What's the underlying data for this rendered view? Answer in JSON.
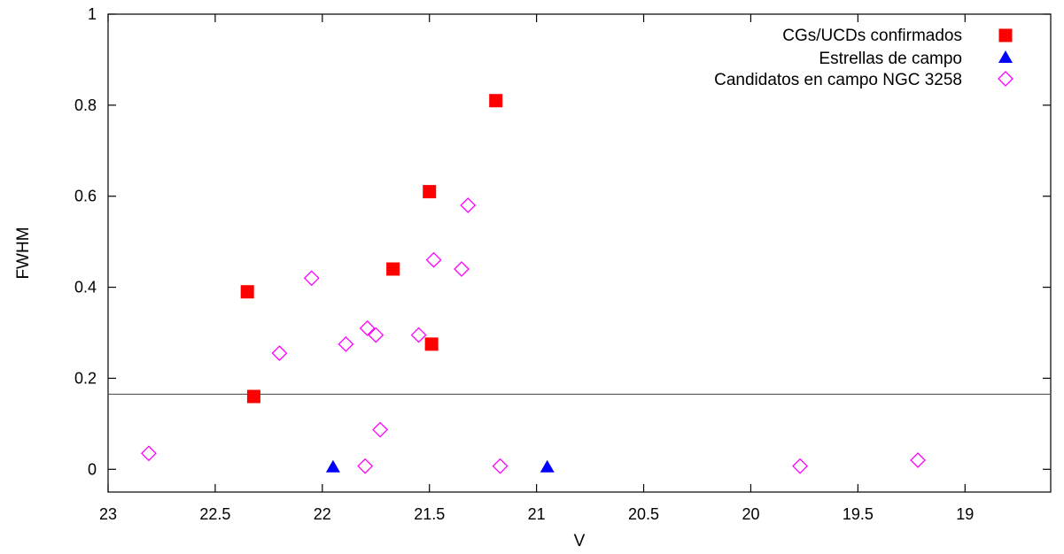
{
  "chart_data": {
    "type": "scatter",
    "title": "",
    "xlabel": "V",
    "ylabel": "FWHM",
    "xlim": [
      23,
      18.6
    ],
    "ylim": [
      -0.05,
      1.0
    ],
    "x_reversed": true,
    "xticks": [
      23,
      22.5,
      22,
      21.5,
      21,
      20.5,
      20,
      19.5,
      19
    ],
    "xtick_labels": [
      "23",
      "22.5",
      "22",
      "21.5",
      "21",
      "20.5",
      "20",
      "19.5",
      "19"
    ],
    "yticks": [
      0,
      0.2,
      0.4,
      0.6,
      0.8,
      1
    ],
    "ytick_labels": [
      "0",
      "0.2",
      "0.4",
      "0.6",
      "0.8",
      "1"
    ],
    "grid": false,
    "legend_position": "top-right",
    "threshold_line": {
      "y": 0.165,
      "color": "#555555"
    },
    "series": [
      {
        "name": "CGs/UCDs confirmados",
        "marker": "filled-square",
        "color": "#ff0000",
        "points": [
          {
            "x": 22.35,
            "y": 0.39
          },
          {
            "x": 22.32,
            "y": 0.16
          },
          {
            "x": 21.67,
            "y": 0.44
          },
          {
            "x": 21.5,
            "y": 0.61
          },
          {
            "x": 21.49,
            "y": 0.275
          },
          {
            "x": 21.19,
            "y": 0.81
          }
        ]
      },
      {
        "name": "Estrellas de campo",
        "marker": "filled-triangle",
        "color": "#0000ff",
        "points": [
          {
            "x": 21.95,
            "y": 0.005
          },
          {
            "x": 20.95,
            "y": 0.005
          }
        ]
      },
      {
        "name": "Candidatos en campo NGC 3258",
        "marker": "open-diamond",
        "color": "#ff00ff",
        "points": [
          {
            "x": 22.81,
            "y": 0.035
          },
          {
            "x": 22.2,
            "y": 0.255
          },
          {
            "x": 22.05,
            "y": 0.42
          },
          {
            "x": 21.89,
            "y": 0.275
          },
          {
            "x": 21.79,
            "y": 0.31
          },
          {
            "x": 21.75,
            "y": 0.295
          },
          {
            "x": 21.73,
            "y": 0.087
          },
          {
            "x": 21.8,
            "y": 0.007
          },
          {
            "x": 21.55,
            "y": 0.295
          },
          {
            "x": 21.48,
            "y": 0.46
          },
          {
            "x": 21.35,
            "y": 0.44
          },
          {
            "x": 21.32,
            "y": 0.58
          },
          {
            "x": 21.17,
            "y": 0.007
          },
          {
            "x": 19.77,
            "y": 0.007
          },
          {
            "x": 19.22,
            "y": 0.02
          }
        ]
      }
    ]
  }
}
